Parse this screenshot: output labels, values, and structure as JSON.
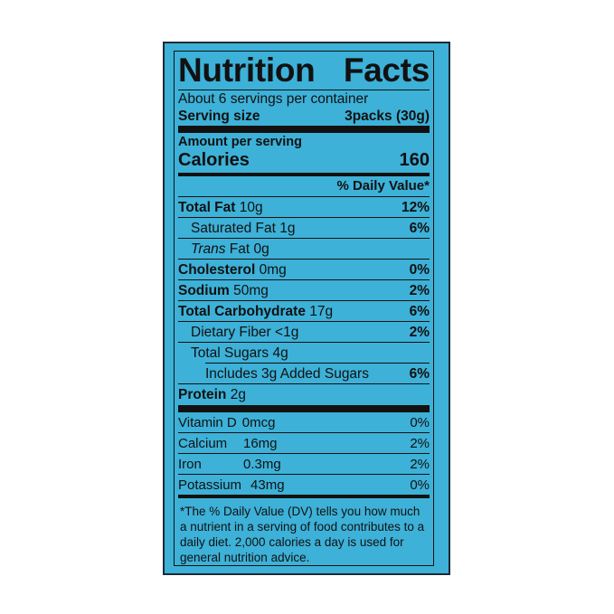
{
  "title_left": "Nutrition",
  "title_right": "Facts",
  "servings_per_container": "About 6 servings per container",
  "serving_size_label": "Serving size",
  "serving_size_value": "3packs (30g)",
  "amount_per_serving": "Amount per serving",
  "calories_label": "Calories",
  "calories_value": "160",
  "daily_value_header": "% Daily Value*",
  "nutrients": {
    "total_fat": {
      "name": "Total Fat",
      "amount": "10g",
      "dv": "12%"
    },
    "saturated_fat": {
      "name": "Saturated Fat",
      "amount": "1g",
      "dv": "6%"
    },
    "trans_fat": {
      "name_italic": "Trans",
      "name_rest": "Fat",
      "amount": "0g"
    },
    "cholesterol": {
      "name": "Cholesterol",
      "amount": "0mg",
      "dv": "0%"
    },
    "sodium": {
      "name": "Sodium",
      "amount": "50mg",
      "dv": "2%"
    },
    "total_carb": {
      "name": "Total Carbohydrate",
      "amount": "17g",
      "dv": "6%"
    },
    "dietary_fiber": {
      "name": "Dietary Fiber",
      "amount": "<1g",
      "dv": "2%"
    },
    "total_sugars": {
      "name": "Total Sugars",
      "amount": "4g"
    },
    "added_sugars": {
      "text": "Includes 3g Added Sugars",
      "dv": "6%"
    },
    "protein": {
      "name": "Protein",
      "amount": "2g"
    }
  },
  "vitamins": [
    {
      "name": "Vitamin D",
      "amount": "0mcg",
      "dv": "0%"
    },
    {
      "name": "Calcium",
      "amount": "16mg",
      "dv": "2%"
    },
    {
      "name": "Iron",
      "amount": "0.3mg",
      "dv": "2%"
    },
    {
      "name": "Potassium",
      "amount": "43mg",
      "dv": "0%"
    }
  ],
  "footnote": "*The % Daily Value (DV) tells you how much a nutrient in a serving of food contributes to a daily diet. 2,000 calories  a day is used for general nutrition advice.",
  "colors": {
    "panel_background": "#3db1d8",
    "text": "#111111"
  }
}
